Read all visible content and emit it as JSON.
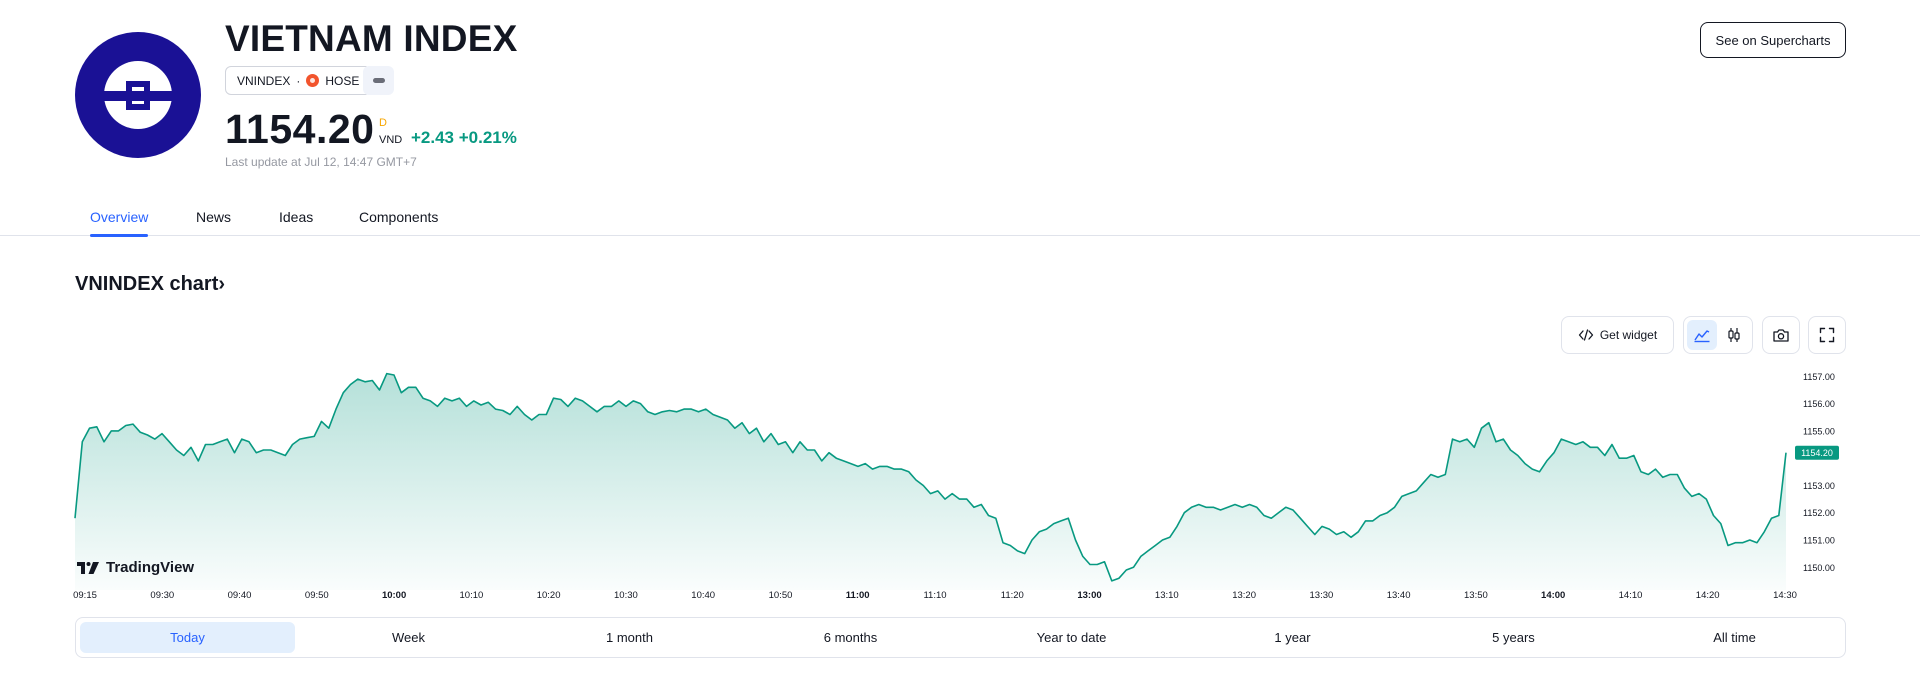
{
  "header": {
    "title": "VIETNAM INDEX",
    "symbol": "VNINDEX",
    "exchange": "HOSE",
    "price": "1154.20",
    "price_flag": "D",
    "currency": "VND",
    "change": "+2.43",
    "change_percent": "+0.21%",
    "last_update": "Last update at Jul 12, 14:47 GMT+7",
    "supercharts_label": "See on Supercharts"
  },
  "tabs": [
    {
      "label": "Overview",
      "active": true
    },
    {
      "label": "News",
      "active": false
    },
    {
      "label": "Ideas",
      "active": false
    },
    {
      "label": "Components",
      "active": false
    }
  ],
  "chart_section": {
    "heading": "VNINDEX chart›",
    "get_widget_label": "Get widget",
    "branding": "TradingView"
  },
  "colors": {
    "accent": "#2962ff",
    "positive": "#089981",
    "logo_bg": "#1a1195",
    "exchange_icon": "#f2542d",
    "delay_flag": "#f7a600"
  },
  "icons": [
    "code-icon",
    "area-chart-icon",
    "candles-icon",
    "camera-icon",
    "fullscreen-icon",
    "tradingview-logo-icon"
  ],
  "chart_data": {
    "type": "area",
    "last_value_label": "1154.20",
    "y_ticks": [
      "1157.00",
      "1156.00",
      "1155.00",
      "1153.00",
      "1152.00",
      "1151.00",
      "1150.00"
    ],
    "ylim": [
      1149.35,
      1157.6
    ],
    "x_ticks": [
      {
        "label": "09:15",
        "bold": false
      },
      {
        "label": "09:30",
        "bold": false
      },
      {
        "label": "09:40",
        "bold": false
      },
      {
        "label": "09:50",
        "bold": false
      },
      {
        "label": "10:00",
        "bold": true
      },
      {
        "label": "10:10",
        "bold": false
      },
      {
        "label": "10:20",
        "bold": false
      },
      {
        "label": "10:30",
        "bold": false
      },
      {
        "label": "10:40",
        "bold": false
      },
      {
        "label": "10:50",
        "bold": false
      },
      {
        "label": "11:00",
        "bold": true
      },
      {
        "label": "11:10",
        "bold": false
      },
      {
        "label": "11:20",
        "bold": false
      },
      {
        "label": "13:00",
        "bold": true
      },
      {
        "label": "13:10",
        "bold": false
      },
      {
        "label": "13:20",
        "bold": false
      },
      {
        "label": "13:30",
        "bold": false
      },
      {
        "label": "13:40",
        "bold": false
      },
      {
        "label": "13:50",
        "bold": false
      },
      {
        "label": "14:00",
        "bold": true
      },
      {
        "label": "14:10",
        "bold": false
      },
      {
        "label": "14:20",
        "bold": false
      },
      {
        "label": "14:30",
        "bold": false
      }
    ],
    "series": [
      {
        "values": [
          1151.8,
          1154.6,
          1155.1,
          1155.15,
          1154.6,
          1155.0,
          1155.0,
          1155.2,
          1155.25,
          1154.95,
          1154.85,
          1154.7,
          1154.9,
          1154.6,
          1154.3,
          1154.1,
          1154.4,
          1153.9,
          1154.5,
          1154.5,
          1154.6,
          1154.7,
          1154.2,
          1154.7,
          1154.6,
          1154.2,
          1154.3,
          1154.3,
          1154.2,
          1154.1,
          1154.5,
          1154.7,
          1154.75,
          1154.8,
          1155.35,
          1155.1,
          1155.8,
          1156.4,
          1156.7,
          1156.9,
          1156.8,
          1156.85,
          1156.5,
          1157.1,
          1157.05,
          1156.4,
          1156.6,
          1156.6,
          1156.2,
          1156.1,
          1155.9,
          1156.2,
          1156.1,
          1156.2,
          1155.9,
          1156.1,
          1155.95,
          1156.05,
          1155.8,
          1155.75,
          1155.6,
          1155.9,
          1155.6,
          1155.4,
          1155.6,
          1155.6,
          1156.2,
          1156.15,
          1155.9,
          1156.2,
          1156.1,
          1155.9,
          1155.7,
          1155.9,
          1155.9,
          1156.1,
          1155.9,
          1156.1,
          1156.0,
          1155.7,
          1155.6,
          1155.7,
          1155.75,
          1155.7,
          1155.8,
          1155.8,
          1155.7,
          1155.8,
          1155.6,
          1155.5,
          1155.4,
          1155.1,
          1155.3,
          1154.9,
          1155.1,
          1154.6,
          1154.9,
          1154.5,
          1154.6,
          1154.2,
          1154.6,
          1154.3,
          1154.3,
          1153.9,
          1154.2,
          1154.0,
          1153.9,
          1153.8,
          1153.7,
          1153.8,
          1153.6,
          1153.7,
          1153.7,
          1153.6,
          1153.6,
          1153.5,
          1153.2,
          1153.0,
          1152.7,
          1152.8,
          1152.5,
          1152.7,
          1152.5,
          1152.5,
          1152.2,
          1152.3,
          1151.9,
          1151.8,
          1150.9,
          1150.8,
          1150.6,
          1150.5,
          1151.0,
          1151.3,
          1151.4,
          1151.6,
          1151.7,
          1151.8,
          1151.0,
          1150.4,
          1150.1,
          1150.1,
          1150.2,
          1149.5,
          1149.6,
          1149.9,
          1150.0,
          1150.4,
          1150.6,
          1150.8,
          1151.0,
          1151.1,
          1151.5,
          1152.0,
          1152.2,
          1152.3,
          1152.2,
          1152.2,
          1152.1,
          1152.2,
          1152.3,
          1152.2,
          1152.3,
          1152.2,
          1151.9,
          1151.8,
          1152.0,
          1152.2,
          1152.1,
          1151.8,
          1151.5,
          1151.2,
          1151.5,
          1151.4,
          1151.2,
          1151.3,
          1151.1,
          1151.3,
          1151.7,
          1151.7,
          1151.9,
          1152.0,
          1152.2,
          1152.6,
          1152.7,
          1152.8,
          1153.1,
          1153.4,
          1153.3,
          1153.4,
          1154.7,
          1154.6,
          1154.7,
          1154.4,
          1155.1,
          1155.3,
          1154.6,
          1154.7,
          1154.3,
          1154.1,
          1153.8,
          1153.6,
          1153.5,
          1153.9,
          1154.2,
          1154.7,
          1154.6,
          1154.5,
          1154.6,
          1154.4,
          1154.4,
          1154.1,
          1154.5,
          1154.0,
          1154.0,
          1154.1,
          1153.5,
          1153.4,
          1153.6,
          1153.3,
          1153.4,
          1153.4,
          1152.9,
          1152.6,
          1152.7,
          1152.5,
          1151.9,
          1151.6,
          1150.8,
          1150.9,
          1150.9,
          1151.0,
          1150.9,
          1151.3,
          1151.8,
          1151.9,
          1154.2
        ]
      }
    ]
  },
  "ranges": [
    {
      "label": "Today",
      "active": true
    },
    {
      "label": "Week",
      "active": false
    },
    {
      "label": "1 month",
      "active": false
    },
    {
      "label": "6 months",
      "active": false
    },
    {
      "label": "Year to date",
      "active": false
    },
    {
      "label": "1 year",
      "active": false
    },
    {
      "label": "5 years",
      "active": false
    },
    {
      "label": "All time",
      "active": false
    }
  ]
}
